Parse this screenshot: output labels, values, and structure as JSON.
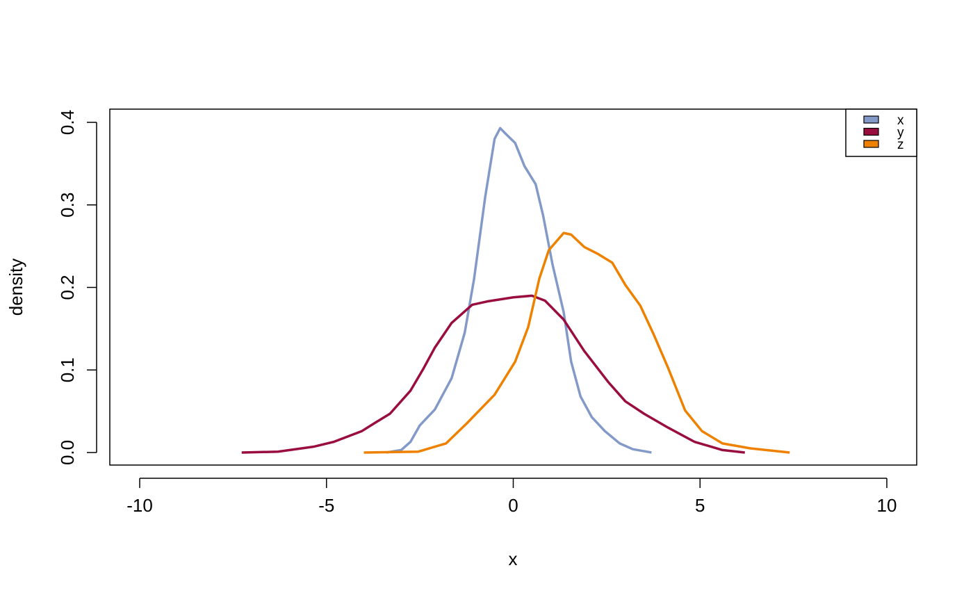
{
  "chart_data": {
    "type": "line",
    "xlabel": "x",
    "ylabel": "density",
    "xlim": [
      -10.8,
      10.8
    ],
    "ylim": [
      -0.0152,
      0.416
    ],
    "xticks": [
      -10,
      -5,
      0,
      5,
      10
    ],
    "yticks": [
      {
        "value": 0,
        "label": "0.0"
      },
      0.1,
      0.2,
      0.3,
      0.4
    ],
    "grid": false,
    "legend": "top-right",
    "series": [
      {
        "name": "x",
        "color": "#8399C8",
        "x": [
          -3.4,
          -3.0,
          -2.75,
          -2.5,
          -2.1,
          -1.65,
          -1.3,
          -1.05,
          -0.75,
          -0.5,
          -0.35,
          -0.2,
          0.05,
          0.3,
          0.6,
          0.8,
          1.05,
          1.35,
          1.55,
          1.8,
          2.1,
          2.45,
          2.85,
          3.2,
          3.7
        ],
        "values": [
          0,
          0.003,
          0.013,
          0.033,
          0.052,
          0.09,
          0.145,
          0.21,
          0.31,
          0.38,
          0.393,
          0.386,
          0.375,
          0.347,
          0.325,
          0.287,
          0.228,
          0.17,
          0.11,
          0.068,
          0.043,
          0.026,
          0.011,
          0.004,
          0
        ]
      },
      {
        "name": "y",
        "color": "#990D3F",
        "x": [
          -7.27,
          -6.3,
          -5.35,
          -4.8,
          -4.05,
          -3.7,
          -3.3,
          -2.75,
          -2.4,
          -2.1,
          -1.65,
          -1.1,
          -0.7,
          0,
          0.5,
          0.85,
          1.35,
          1.9,
          2.55,
          3.0,
          3.5,
          4.15,
          4.85,
          5.6,
          6.2
        ],
        "values": [
          0,
          0.001,
          0.007,
          0.013,
          0.026,
          0.036,
          0.047,
          0.075,
          0.102,
          0.127,
          0.157,
          0.179,
          0.183,
          0.188,
          0.19,
          0.184,
          0.161,
          0.123,
          0.085,
          0.062,
          0.047,
          0.03,
          0.013,
          0.003,
          0
        ]
      },
      {
        "name": "z",
        "color": "#EE8100",
        "x": [
          -4.0,
          -2.55,
          -1.8,
          -1.25,
          -0.5,
          0.05,
          0.4,
          0.7,
          0.95,
          1.35,
          1.55,
          1.9,
          2.25,
          2.65,
          3.0,
          3.4,
          3.75,
          4.15,
          4.6,
          5.05,
          5.6,
          6.35,
          7.4
        ],
        "values": [
          0,
          0.001,
          0.011,
          0.035,
          0.07,
          0.11,
          0.152,
          0.211,
          0.245,
          0.266,
          0.264,
          0.249,
          0.241,
          0.23,
          0.203,
          0.178,
          0.144,
          0.102,
          0.051,
          0.026,
          0.011,
          0.005,
          0
        ]
      }
    ]
  }
}
